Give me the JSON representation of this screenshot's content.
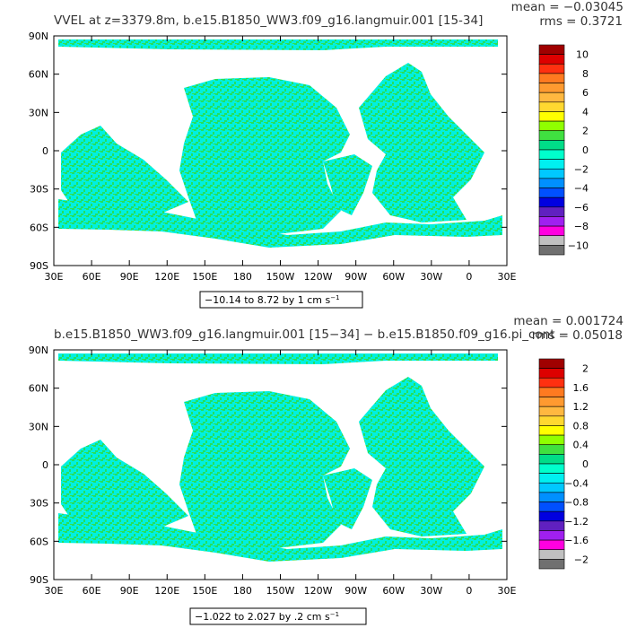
{
  "chart_data": [
    {
      "type": "heatmap",
      "title": "VVEL at z=3379.8m, b.e15.B1850_WW3.f09_g16.langmuir.001 [15-34]",
      "mean_text": "mean = −0.03045",
      "rms_text": "rms = 0.3721",
      "range_text": "−10.14 to 8.72 by 1 cm s",
      "range_unit_exp": "−1",
      "x_ticks": [
        "30E",
        "60E",
        "90E",
        "120E",
        "150E",
        "180",
        "150W",
        "120W",
        "90W",
        "60W",
        "30W",
        "0",
        "30E"
      ],
      "y_ticks": [
        "90N",
        "60N",
        "30N",
        "0",
        "30S",
        "60S",
        "90S"
      ],
      "colorbar_labels": [
        "10",
        "8",
        "6",
        "4",
        "2",
        "0",
        "−2",
        "−4",
        "−6",
        "−8",
        "−10"
      ],
      "colorbar_colors": [
        "#a00000",
        "#dd0000",
        "#ff3010",
        "#ff7a20",
        "#ff9a30",
        "#ffb840",
        "#ffd830",
        "#ffff00",
        "#90ff00",
        "#40e040",
        "#00dd88",
        "#00ffcc",
        "#00f0f0",
        "#00c8ff",
        "#0090ff",
        "#0050ff",
        "#0000e0",
        "#6020c0",
        "#a020f0",
        "#ff00e0",
        "#c0c0c0",
        "#707070"
      ]
    },
    {
      "type": "heatmap",
      "title": "b.e15.B1850_WW3.f09_g16.langmuir.001 [15−34] − b.e15.B1850.f09_g16.pi_cont",
      "mean_text": "mean = 0.001724",
      "rms_text": "rms = 0.05018",
      "range_text": "−1.022 to 2.027 by .2 cm s",
      "range_unit_exp": "−1",
      "x_ticks": [
        "30E",
        "60E",
        "90E",
        "120E",
        "150E",
        "180",
        "150W",
        "120W",
        "90W",
        "60W",
        "30W",
        "0",
        "30E"
      ],
      "y_ticks": [
        "90N",
        "60N",
        "30N",
        "0",
        "30S",
        "60S",
        "90S"
      ],
      "colorbar_labels": [
        "2",
        "1.6",
        "1.2",
        "0.8",
        "0.4",
        "0",
        "−0.4",
        "−0.8",
        "−1.2",
        "−1.6",
        "−2"
      ],
      "colorbar_colors": [
        "#a00000",
        "#dd0000",
        "#ff3010",
        "#ff7a20",
        "#ff9a30",
        "#ffb840",
        "#ffd830",
        "#ffff00",
        "#90ff00",
        "#40e040",
        "#00dd88",
        "#00ffcc",
        "#00f0f0",
        "#00c8ff",
        "#0090ff",
        "#0050ff",
        "#0000e0",
        "#6020c0",
        "#a020f0",
        "#ff00e0",
        "#c0c0c0",
        "#707070"
      ]
    }
  ],
  "colors": {
    "ocean_main": "#00f0e0",
    "ocean_alt": "#22e060",
    "land": "#ffffff",
    "frame": "#000000"
  }
}
